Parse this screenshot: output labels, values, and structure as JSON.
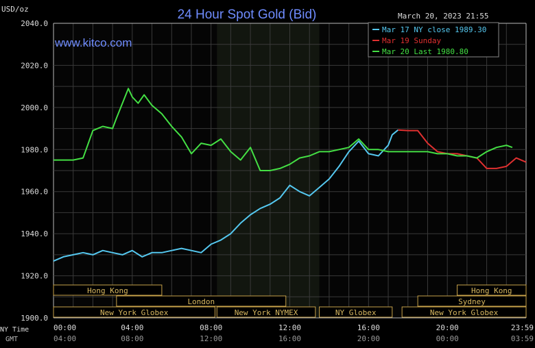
{
  "chart_data": {
    "type": "line",
    "title": "24 Hour Spot Gold (Bid)",
    "subtitle": "www.kitco.com",
    "timestamp": "March 20, 2023 21:55",
    "ylabel": "USD/oz",
    "ylim": [
      1900,
      2040
    ],
    "yticks": [
      "2040.0",
      "2020.0",
      "2000.0",
      "1980.0",
      "1960.0",
      "1940.0",
      "1920.0",
      "1900.0"
    ],
    "xlim": [
      0,
      24
    ],
    "x_label_ny": "NY Time",
    "x_label_gmt": "GMT",
    "xticks_ny": [
      "00:00",
      "04:00",
      "08:00",
      "12:00",
      "16:00",
      "20:00",
      "23:59"
    ],
    "xticks_gmt": [
      "04:00",
      "08:00",
      "12:00",
      "16:00",
      "20:00",
      "00:00",
      "03:59"
    ],
    "xtick_positions": [
      0,
      4,
      8,
      12,
      16,
      20,
      24
    ],
    "grid": true,
    "legend_position": "top-right",
    "shaded_region_hours": [
      8.3,
      13.5
    ],
    "series": [
      {
        "name": "Mar 17 NY close 1989.30",
        "color": "#55c8f0",
        "x": [
          0,
          0.5,
          1,
          1.5,
          2,
          2.5,
          3,
          3.5,
          4,
          4.5,
          5,
          5.5,
          6,
          6.5,
          7,
          7.5,
          8,
          8.5,
          9,
          9.5,
          10,
          10.5,
          11,
          11.5,
          12,
          12.5,
          13,
          13.5,
          14,
          14.5,
          15,
          15.5,
          16,
          16.5,
          17,
          17.2,
          17.5
        ],
        "y": [
          1927,
          1929,
          1930,
          1931,
          1930,
          1932,
          1931,
          1930,
          1932,
          1929,
          1931,
          1931,
          1932,
          1933,
          1932,
          1931,
          1935,
          1937,
          1940,
          1945,
          1949,
          1952,
          1954,
          1957,
          1963,
          1960,
          1958,
          1962,
          1966,
          1972,
          1979,
          1984,
          1978,
          1977,
          1982,
          1987,
          1989.3
        ]
      },
      {
        "name": "Mar 19 Sunday",
        "color": "#e03030",
        "x": [
          17.5,
          18,
          18.5,
          19,
          19.5,
          20,
          20.5,
          21,
          21.5,
          22,
          22.5,
          23,
          23.5,
          24
        ],
        "y": [
          1989.3,
          1989,
          1989,
          1983,
          1979,
          1978,
          1978,
          1977,
          1976,
          1971,
          1971,
          1972,
          1976,
          1974
        ]
      },
      {
        "name": "Mar 20 Last 1980.80",
        "color": "#44e044",
        "x": [
          0,
          1,
          1.5,
          2,
          2.5,
          3,
          3.2,
          3.5,
          3.8,
          4,
          4.3,
          4.6,
          5,
          5.5,
          6,
          6.5,
          7,
          7.5,
          8,
          8.5,
          9,
          9.5,
          10,
          10.5,
          11,
          11.5,
          12,
          12.5,
          13,
          13.5,
          14,
          14.5,
          15,
          15.5,
          16,
          16.5,
          17,
          17.5,
          18,
          18.5,
          19,
          19.5,
          20,
          20.5,
          21,
          21.5,
          22,
          22.5,
          23,
          23.3
        ],
        "y": [
          1975,
          1975,
          1976,
          1989,
          1991,
          1990,
          1995,
          2002,
          2009,
          2005,
          2002,
          2006,
          2001,
          1997,
          1991,
          1986,
          1978,
          1983,
          1982,
          1985,
          1979,
          1975,
          1981,
          1970,
          1970,
          1971,
          1973,
          1976,
          1977,
          1979,
          1979,
          1980,
          1981,
          1985,
          1980,
          1980,
          1979,
          1979,
          1979,
          1979,
          1979,
          1978,
          1978,
          1977,
          1977,
          1976,
          1979,
          1981,
          1982,
          1981
        ]
      }
    ],
    "sessions": [
      {
        "label": "Hong Kong",
        "start": 0,
        "end": 5.5,
        "row": 0
      },
      {
        "label": "Hong Kong",
        "start": 20.5,
        "end": 24,
        "row": 0
      },
      {
        "label": "London",
        "start": 3.2,
        "end": 11.8,
        "row": 1
      },
      {
        "label": "Sydney",
        "start": 18.5,
        "end": 24,
        "row": 1
      },
      {
        "label": "New York Globex",
        "start": 0,
        "end": 8.2,
        "row": 2
      },
      {
        "label": "New York NYMEX",
        "start": 8.3,
        "end": 13.3,
        "row": 2
      },
      {
        "label": "NY Globex",
        "start": 13.5,
        "end": 17.2,
        "row": 2
      },
      {
        "label": "New York Globex",
        "start": 17.7,
        "end": 24,
        "row": 2
      }
    ]
  }
}
